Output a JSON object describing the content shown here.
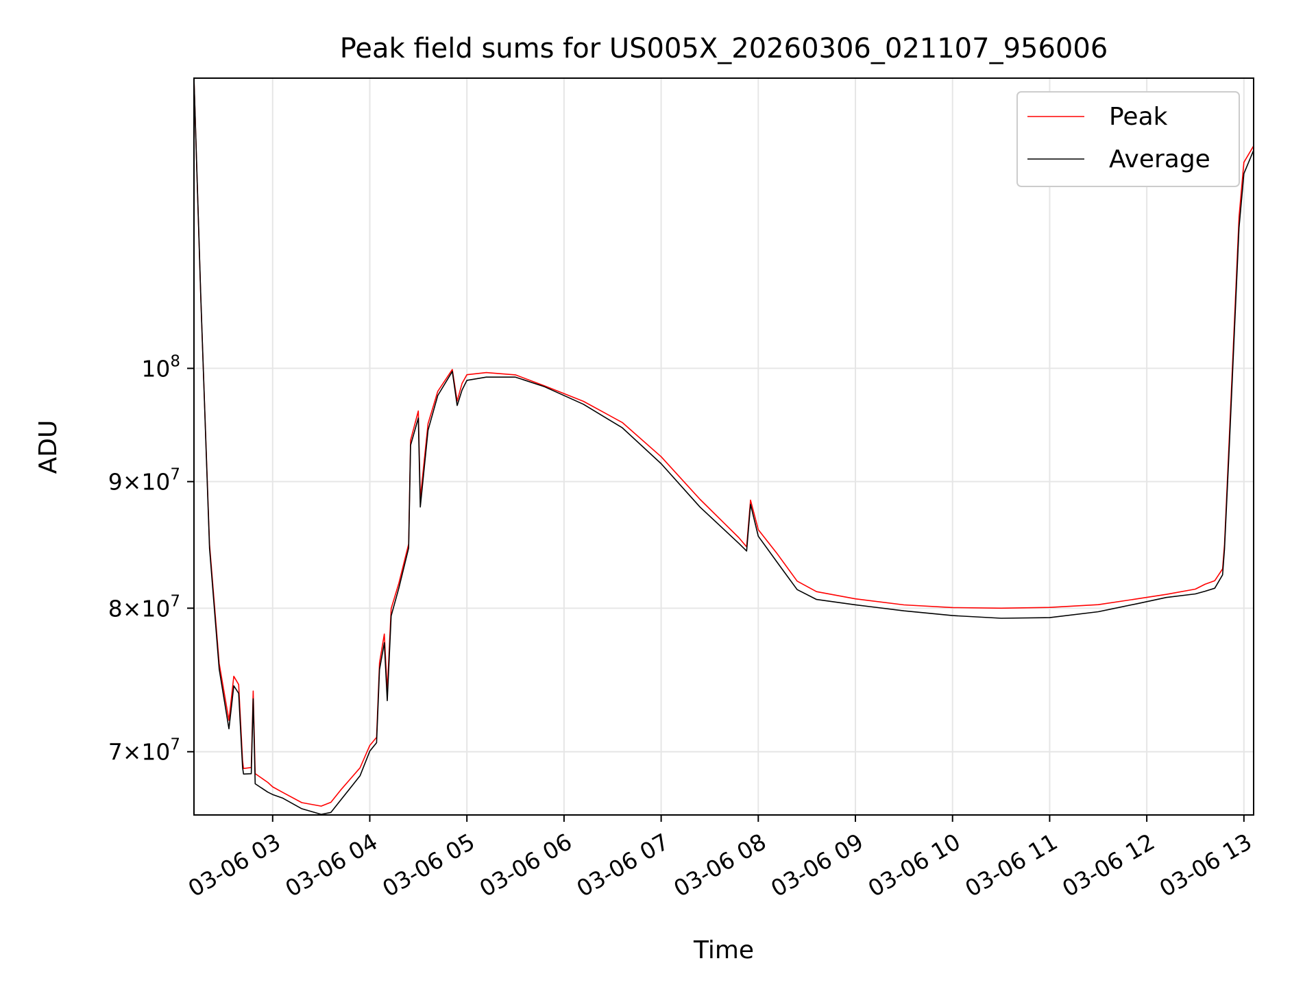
{
  "chart_data": {
    "type": "line",
    "title": "Peak field sums for US005X_20260306_021107_956006",
    "xlabel": "Time",
    "ylabel": "ADU",
    "yscale": "log",
    "xlim": [
      2.19,
      13.1
    ],
    "ylim": [
      66000000,
      131000000
    ],
    "grid": true,
    "legend_position": "upper right",
    "x_ticks": [
      {
        "value": 3,
        "label": "03-06 03"
      },
      {
        "value": 4,
        "label": "03-06 04"
      },
      {
        "value": 5,
        "label": "03-06 05"
      },
      {
        "value": 6,
        "label": "03-06 06"
      },
      {
        "value": 7,
        "label": "03-06 07"
      },
      {
        "value": 8,
        "label": "03-06 08"
      },
      {
        "value": 9,
        "label": "03-06 09"
      },
      {
        "value": 10,
        "label": "03-06 10"
      },
      {
        "value": 11,
        "label": "03-06 11"
      },
      {
        "value": 12,
        "label": "03-06 12"
      },
      {
        "value": 13,
        "label": "03-06 13"
      }
    ],
    "y_ticks": [
      {
        "value": 70000000,
        "mant": "7",
        "exp": "7"
      },
      {
        "value": 80000000,
        "mant": "8",
        "exp": "7"
      },
      {
        "value": 90000000,
        "mant": "9",
        "exp": "7"
      },
      {
        "value": 100000000,
        "mant": "",
        "exp": "8"
      }
    ],
    "series": [
      {
        "name": "Peak",
        "color": "#ff0000",
        "x": [
          2.19,
          2.26,
          2.35,
          2.45,
          2.55,
          2.6,
          2.65,
          2.69,
          2.7,
          2.78,
          2.8,
          2.82,
          2.95,
          3.0,
          3.1,
          3.3,
          3.5,
          3.6,
          3.7,
          3.9,
          4.0,
          4.07,
          4.1,
          4.15,
          4.18,
          4.22,
          4.3,
          4.4,
          4.42,
          4.5,
          4.52,
          4.6,
          4.7,
          4.85,
          4.9,
          4.95,
          5.0,
          5.2,
          5.5,
          5.8,
          6.2,
          6.6,
          7.0,
          7.4,
          7.8,
          7.88,
          7.92,
          8.0,
          8.2,
          8.4,
          8.6,
          9.0,
          9.5,
          10.0,
          10.5,
          11.0,
          11.5,
          11.9,
          12.2,
          12.5,
          12.6,
          12.7,
          12.78,
          12.8,
          12.85,
          12.9,
          12.95,
          13.0,
          13.1
        ],
        "y": [
          131000000,
          107000000,
          85000000,
          76000000,
          72000000,
          75000000,
          74500000,
          69500000,
          69000000,
          69000000,
          74000000,
          68500000,
          68000000,
          67800000,
          67500000,
          66800000,
          66500000,
          66700000,
          67500000,
          69000000,
          70500000,
          71000000,
          76000000,
          78000000,
          74000000,
          80000000,
          82000000,
          85000000,
          93500000,
          96000000,
          88500000,
          95000000,
          98000000,
          100000000,
          97000000,
          98500000,
          99300000,
          99600000,
          99500000,
          98500000,
          97000000,
          95000000,
          92000000,
          88500000,
          85500000,
          84800000,
          88500000,
          86000000,
          84000000,
          82000000,
          81300000,
          80800000,
          80300000,
          80000000,
          79900000,
          80000000,
          80300000,
          80800000,
          81100000,
          81400000,
          81700000,
          82000000,
          83000000,
          85000000,
          94000000,
          104000000,
          115000000,
          121000000,
          123000000
        ]
      },
      {
        "name": "Average",
        "color": "#000000",
        "x": [
          2.19,
          2.26,
          2.35,
          2.45,
          2.55,
          2.6,
          2.65,
          2.69,
          2.7,
          2.78,
          2.8,
          2.82,
          2.95,
          3.0,
          3.1,
          3.3,
          3.5,
          3.6,
          3.7,
          3.9,
          4.0,
          4.07,
          4.1,
          4.15,
          4.18,
          4.22,
          4.3,
          4.4,
          4.42,
          4.5,
          4.52,
          4.6,
          4.7,
          4.85,
          4.9,
          4.95,
          5.0,
          5.2,
          5.5,
          5.8,
          6.2,
          6.6,
          7.0,
          7.4,
          7.8,
          7.88,
          7.92,
          8.0,
          8.2,
          8.4,
          8.6,
          9.0,
          9.5,
          10.0,
          10.5,
          11.0,
          11.5,
          11.9,
          12.2,
          12.5,
          12.6,
          12.7,
          12.78,
          12.8,
          12.85,
          12.9,
          12.95,
          13.0,
          13.1
        ],
        "y": [
          131000000,
          107000000,
          84500000,
          75500000,
          71500000,
          74500000,
          74000000,
          69000000,
          68500000,
          68500000,
          73500000,
          68000000,
          67500000,
          67300000,
          67000000,
          66300000,
          66000000,
          66200000,
          67000000,
          68500000,
          70000000,
          70500000,
          75500000,
          77500000,
          73500000,
          79500000,
          81500000,
          84500000,
          93000000,
          95500000,
          88000000,
          94500000,
          97500000,
          99600000,
          96500000,
          98000000,
          99000000,
          99300000,
          99200000,
          98200000,
          96600000,
          94600000,
          91600000,
          88000000,
          85000000,
          84300000,
          88000000,
          85500000,
          83500000,
          81500000,
          80700000,
          80200000,
          79700000,
          79400000,
          79300000,
          79400000,
          79800000,
          80300000,
          80700000,
          81000000,
          81300000,
          81600000,
          82600000,
          84500000,
          93000000,
          103000000,
          114000000,
          120000000,
          122500000
        ]
      }
    ]
  }
}
